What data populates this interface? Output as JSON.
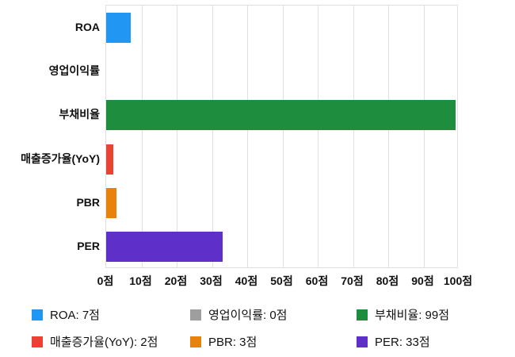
{
  "chart_data": {
    "type": "bar",
    "orientation": "horizontal",
    "title": "",
    "categories": [
      "ROA",
      "영업이익률",
      "부채비율",
      "매출증가율(YoY)",
      "PBR",
      "PER"
    ],
    "values": [
      7,
      0,
      99,
      2,
      3,
      33
    ],
    "unit": "점",
    "colors": [
      "#2196f3",
      "#9e9e9e",
      "#1e8e3e",
      "#ea4335",
      "#e8820b",
      "#5e2fc9"
    ],
    "xlim": [
      0,
      100
    ],
    "x_ticks": [
      "0점",
      "10점",
      "20점",
      "30점",
      "40점",
      "50점",
      "60점",
      "70점",
      "80점",
      "90점",
      "100점"
    ],
    "grid": true,
    "legend_position": "bottom",
    "legend_labels": [
      "ROA: 7점",
      "영업이익률: 0점",
      "부채비율: 99점",
      "매출증가율(YoY): 2점",
      "PBR: 3점",
      "PER: 33점"
    ]
  }
}
